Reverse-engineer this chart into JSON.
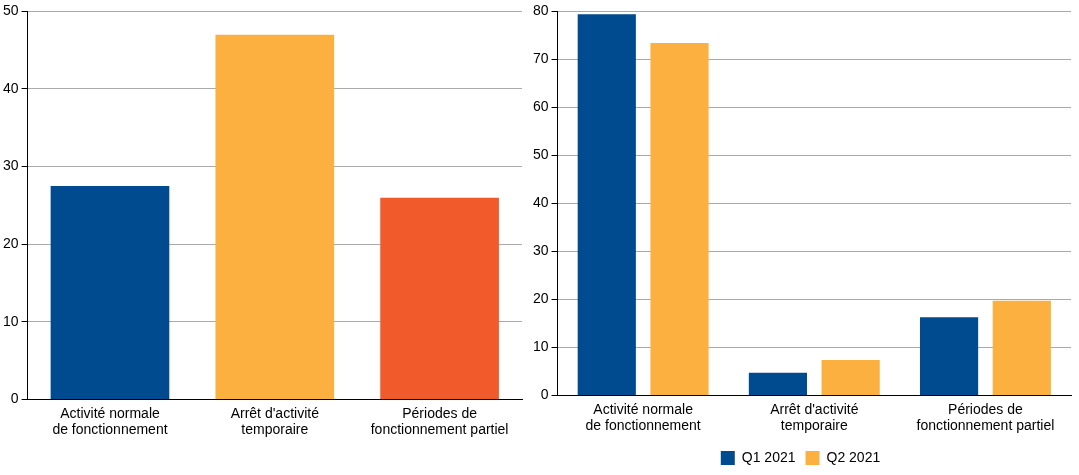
{
  "chart_data": [
    {
      "type": "bar",
      "categories": [
        "Activité normale de fonctionnement",
        "Arrêt d'activité temporaire",
        "Périodes de fonctionnement partiel"
      ],
      "values": [
        27.5,
        47,
        26
      ],
      "colors": [
        "#004a8f",
        "#fbb040",
        "#f15a2b"
      ],
      "ylim": [
        0,
        50
      ],
      "yticks": [
        0,
        10,
        20,
        30,
        40,
        50
      ],
      "grid": "y",
      "legend": false
    },
    {
      "type": "bar",
      "categories": [
        "Activité normale de fonctionnement",
        "Arrêt d'activité temporaire",
        "Périodes de fonctionnement partiel"
      ],
      "series": [
        {
          "name": "Q1 2021",
          "color": "#004a8f",
          "values": [
            79.4,
            4.7,
            16.3
          ]
        },
        {
          "name": "Q2 2021",
          "color": "#fbb040",
          "values": [
            73.4,
            7.4,
            19.7
          ]
        }
      ],
      "ylim": [
        0,
        80
      ],
      "yticks": [
        0,
        10,
        20,
        30,
        40,
        50,
        60,
        70,
        80
      ],
      "grid": "y",
      "legend": "bottom"
    }
  ]
}
